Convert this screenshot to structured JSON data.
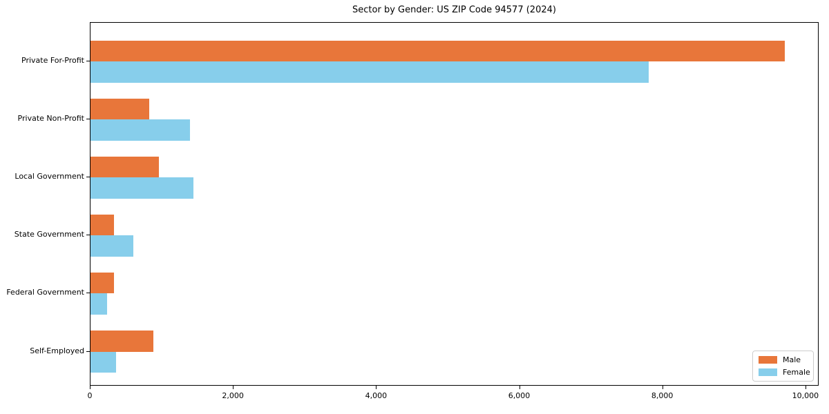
{
  "chart_data": {
    "type": "bar",
    "orientation": "horizontal",
    "title": "Sector by Gender: US ZIP Code 94577 (2024)",
    "categories": [
      "Private For-Profit",
      "Private Non-Profit",
      "Local Government",
      "State Government",
      "Federal Government",
      "Self-Employed"
    ],
    "series": [
      {
        "name": "Male",
        "color": "#e8763a",
        "values": [
          9700,
          820,
          960,
          330,
          330,
          880
        ]
      },
      {
        "name": "Female",
        "color": "#87ceeb",
        "values": [
          7800,
          1390,
          1440,
          600,
          230,
          360
        ]
      }
    ],
    "xlabel": "",
    "ylabel": "",
    "xlim": [
      0,
      10185
    ],
    "x_ticks": [
      0,
      2000,
      4000,
      6000,
      8000,
      10000
    ],
    "x_tick_labels": [
      "0",
      "2,000",
      "4,000",
      "6,000",
      "8,000",
      "10,000"
    ],
    "grid": false,
    "legend": {
      "position": "lower right",
      "entries": [
        "Male",
        "Female"
      ]
    }
  }
}
